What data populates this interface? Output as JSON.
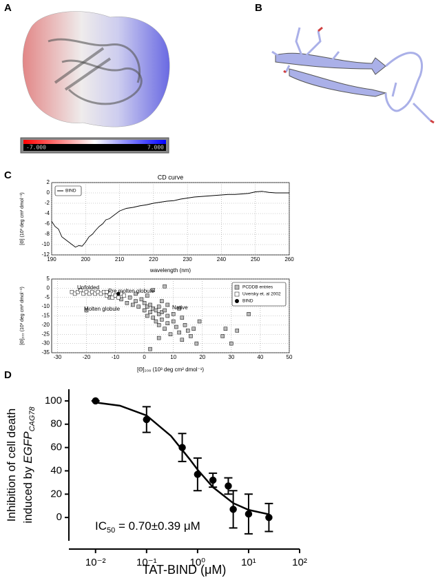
{
  "panels": [
    "A",
    "B",
    "C",
    "D"
  ],
  "colorbar": {
    "min_label": "-7.000",
    "max_label": "7.000"
  },
  "chart_data": [
    {
      "type": "line",
      "title": "CD curve",
      "xlabel": "wavelength (nm)",
      "ylabel": "[Θ] (10³ deg cm² dmol⁻¹)",
      "xlim": [
        190,
        260
      ],
      "xticks": [
        190,
        200,
        210,
        220,
        230,
        240,
        250,
        260
      ],
      "ylim": [
        -12,
        2
      ],
      "yticks": [
        -12,
        -10,
        -8,
        -6,
        -4,
        -2,
        0,
        2
      ],
      "grid": true,
      "legend": "upper left",
      "series": [
        {
          "name": "BIND",
          "color": "#000000",
          "x": [
            190,
            191,
            192,
            193,
            194,
            195,
            196,
            197,
            198,
            199,
            200,
            201,
            202,
            203,
            204,
            205,
            206,
            207,
            208,
            209,
            210,
            212,
            214,
            216,
            218,
            220,
            222,
            224,
            226,
            228,
            230,
            232,
            234,
            236,
            238,
            240,
            242,
            244,
            246,
            248,
            250,
            252,
            254,
            256,
            258,
            260
          ],
          "values": [
            -5.5,
            -6.5,
            -7,
            -8.5,
            -9,
            -9.5,
            -10,
            -10.5,
            -10.2,
            -10.3,
            -9.5,
            -8.5,
            -8,
            -7.2,
            -6.5,
            -6,
            -5.2,
            -5,
            -4.5,
            -4,
            -3.5,
            -3,
            -2.8,
            -2.5,
            -2.3,
            -2,
            -1.8,
            -1.6,
            -1.5,
            -1.2,
            -1,
            -0.8,
            -0.7,
            -0.6,
            -0.5,
            -0.4,
            -0.3,
            -0.3,
            -0.2,
            -0.1,
            0.2,
            0.3,
            0.1,
            0,
            0,
            0
          ]
        }
      ]
    },
    {
      "type": "scatter",
      "xlabel": "[Θ]₂₀₈ (10³ deg cm² dmol⁻¹)",
      "ylabel": "[Θ]₂₂₂ (10³ deg cm² dmol⁻¹)",
      "xlim": [
        -32,
        50
      ],
      "xticks": [
        -30,
        -20,
        -10,
        0,
        10,
        20,
        30,
        40,
        50
      ],
      "ylim": [
        -35,
        5
      ],
      "yticks": [
        -35,
        -30,
        -25,
        -20,
        -15,
        -10,
        -5,
        0,
        5
      ],
      "grid": true,
      "legend": "upper right",
      "annotations": [
        "Unfolded",
        "Pre molten globule",
        "Molten globule",
        "Native"
      ],
      "series": [
        {
          "name": "PCDDB entries",
          "color": "#bbbbbb",
          "marker": "square",
          "x": [
            -20,
            -12,
            -10,
            -8,
            -6,
            -5,
            -4,
            -3,
            -2,
            -1,
            0,
            0,
            1,
            1,
            2,
            2,
            3,
            3,
            4,
            4,
            5,
            5,
            5,
            6,
            6,
            7,
            7,
            8,
            8,
            9,
            10,
            10,
            11,
            12,
            13,
            13,
            14,
            15,
            16,
            17,
            18,
            19,
            2,
            5,
            28,
            27,
            32,
            36,
            30,
            -3,
            1,
            6,
            8,
            12,
            3,
            7
          ],
          "values": [
            -12,
            -5,
            -4,
            -6,
            -8,
            -5,
            -9,
            -7,
            -10,
            -6,
            -8,
            -12,
            -10,
            -15,
            -9,
            -13,
            -11,
            -16,
            -12,
            -18,
            -10,
            -14,
            -20,
            -13,
            -17,
            -12,
            -22,
            -15,
            -19,
            -25,
            -14,
            -18,
            -21,
            -24,
            -16,
            -28,
            -20,
            -23,
            -26,
            -22,
            -30,
            -18,
            -33,
            -27,
            -22,
            -26,
            -23,
            -14,
            -30,
            -3,
            -4,
            -7,
            -9,
            -11,
            -1,
            1
          ]
        },
        {
          "name": "Uversky et. al 2002",
          "color": "#ffffff",
          "marker": "square",
          "x": [
            -25,
            -24,
            -23,
            -22,
            -21,
            -20,
            -19,
            -18,
            -17,
            -16,
            -15,
            -14,
            -13,
            -12,
            -11,
            -10,
            -9,
            -8,
            -7,
            -13
          ],
          "values": [
            -2,
            -3,
            -2,
            -1,
            -3,
            -2,
            -3,
            -2,
            -3,
            -2,
            -3,
            -2,
            -4,
            -3,
            -5,
            -4,
            -5,
            -3,
            -4,
            -2
          ]
        },
        {
          "name": "BIND",
          "color": "#000000",
          "marker": "circle",
          "x": [
            -9
          ],
          "values": [
            -3
          ]
        }
      ]
    },
    {
      "type": "scatter",
      "xlabel": "TAT-BIND (μM)",
      "ylabel": [
        "Inhibition of cell death",
        "induced by ",
        "EGFP",
        "CAG78"
      ],
      "annotation": [
        "IC",
        "50",
        " = 0.70±0.39 μM"
      ],
      "log_x": true,
      "grid": false,
      "xlim": [
        0.003,
        100
      ],
      "xticks": [
        {
          "value": 0.01,
          "label": "10⁻²"
        },
        {
          "value": 0.1,
          "label": "10⁻¹"
        },
        {
          "value": 1,
          "label": "10⁰"
        },
        {
          "value": 10,
          "label": "10¹"
        },
        {
          "value": 100,
          "label": "10²"
        }
      ],
      "ylim": [
        -20,
        110
      ],
      "yticks": [
        0,
        20,
        40,
        60,
        80,
        100
      ],
      "series": [
        {
          "color": "#000000",
          "marker": "circle",
          "x": [
            0.01,
            0.1,
            0.5,
            1,
            2,
            4,
            5,
            10,
            25
          ],
          "values": [
            100,
            84,
            60,
            37,
            32,
            27,
            7,
            3,
            0
          ],
          "errors": [
            0,
            11,
            12,
            14,
            6,
            7,
            16,
            17,
            12
          ]
        },
        {
          "color": "#000000",
          "marker": "none",
          "line": true,
          "x": [
            0.01,
            0.03,
            0.1,
            0.3,
            0.7,
            1,
            2,
            5,
            10,
            25
          ],
          "values": [
            98.6,
            95.9,
            87.5,
            70,
            50,
            41,
            26,
            12.3,
            6.5,
            2.7
          ]
        }
      ]
    }
  ]
}
